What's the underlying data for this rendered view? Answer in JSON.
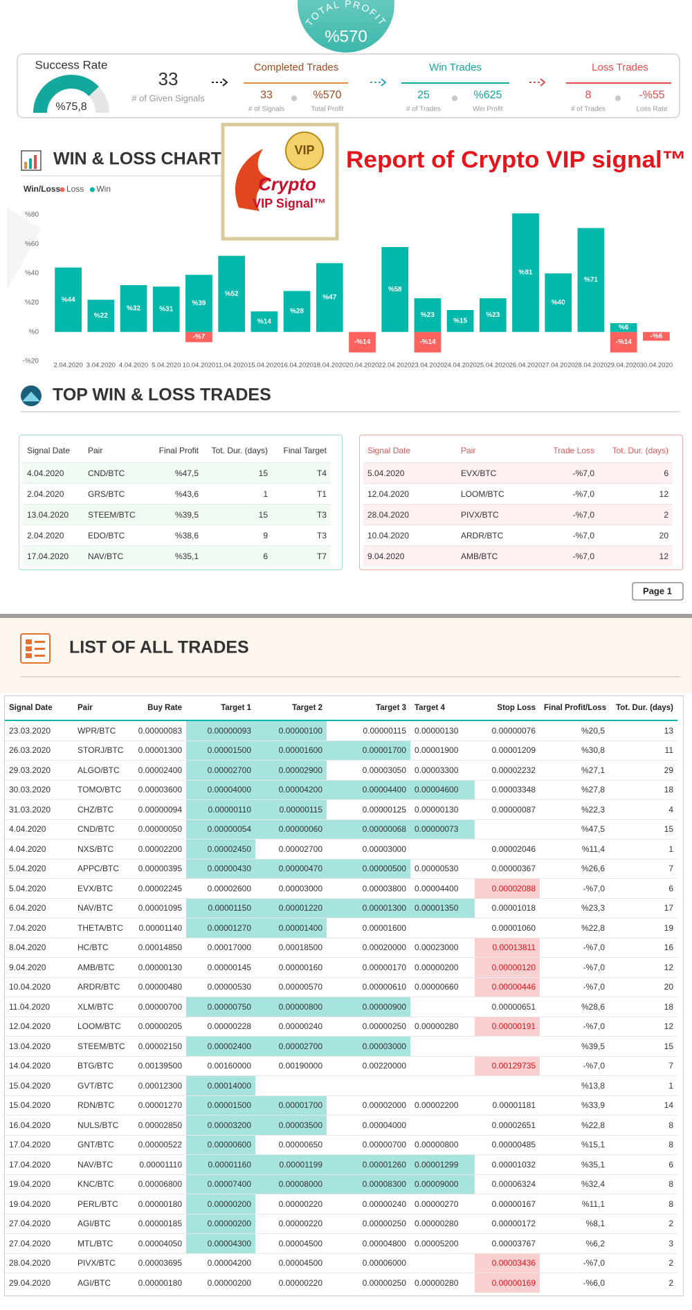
{
  "header": {
    "total_profit_label": "TOTAL PROFIT",
    "total_profit": "%570",
    "report_title": "Report of Crypto VIP signal™",
    "logo": {
      "badge": "VIP",
      "brand": "Crypto",
      "subtitle": "VIP Signal™"
    }
  },
  "kpis": {
    "success_rate": {
      "label": "Success Rate",
      "value": 75.8,
      "display": "%75,8"
    },
    "given_signals": {
      "value": 33,
      "label": "# of Given Signals"
    },
    "completed": {
      "title": "Completed Trades",
      "count": 33,
      "count_label": "# of Signals",
      "profit": "%570",
      "profit_label": "Total Profit"
    },
    "win": {
      "title": "Win Trades",
      "count": 25,
      "count_label": "# of Trades",
      "profit": "%625",
      "profit_label": "Win Profit"
    },
    "loss": {
      "title": "Loss Trades",
      "count": 8,
      "count_label": "# of Trades",
      "profit": "-%55",
      "profit_label": "Loss Rate"
    }
  },
  "chart_data": {
    "type": "bar",
    "title": "WIN & LOSS CHART",
    "legend_title": "Win/Loss",
    "legend": "top-left",
    "grid": false,
    "categories": [
      "2.04.2020",
      "3.04.2020",
      "4.04.2020",
      "5.04.2020",
      "10.04.2020",
      "11.04.2020",
      "15.04.2020",
      "16.04.2020",
      "18.04.2020",
      "20.04.2020",
      "22.04.2020",
      "23.04.2020",
      "24.04.2020",
      "25.04.2020",
      "26.04.2020",
      "27.04.2020",
      "28.04.2020",
      "29.04.2020",
      "30.04.2020"
    ],
    "series": [
      {
        "name": "Loss",
        "color": "#fd625e",
        "values": [
          null,
          null,
          null,
          null,
          -7,
          null,
          null,
          null,
          null,
          -14,
          null,
          -14,
          null,
          null,
          null,
          null,
          null,
          -14,
          -6
        ],
        "value_labels": [
          null,
          null,
          null,
          null,
          "-%7",
          null,
          null,
          null,
          null,
          "-%14",
          null,
          "-%14",
          null,
          null,
          null,
          null,
          null,
          "-%14",
          "-%6"
        ]
      },
      {
        "name": "Win",
        "color": "#01b8aa",
        "values": [
          44,
          22,
          32,
          31,
          39,
          52,
          14,
          28,
          47,
          null,
          58,
          23,
          15,
          23,
          81,
          40,
          71,
          6,
          null
        ],
        "value_labels": [
          "%44",
          "%22",
          "%32",
          "%31",
          "%39",
          "%52",
          "%14",
          "%28",
          "%47",
          null,
          "%58",
          "%23",
          "%15",
          "%23",
          "%81",
          "%40",
          "%71",
          "%6",
          null
        ]
      }
    ],
    "ylim": [
      -20,
      84
    ],
    "yticks": [
      {
        "value": -20,
        "label": "-%20"
      },
      {
        "value": 0,
        "label": "%0"
      },
      {
        "value": 20,
        "label": "%20"
      },
      {
        "value": 40,
        "label": "%40"
      },
      {
        "value": 60,
        "label": "%60"
      },
      {
        "value": 80,
        "label": "%80"
      }
    ]
  },
  "top_trades": {
    "title": "TOP WIN & LOSS TRADES",
    "win": {
      "columns": [
        "Signal Date",
        "Pair",
        "Final Profit",
        "Tot. Dur. (days)",
        "Final Target"
      ],
      "rows": [
        [
          "4.04.2020",
          "CND/BTC",
          "%47,5",
          15,
          "T4"
        ],
        [
          "2.04.2020",
          "GRS/BTC",
          "%43,6",
          1,
          "T1"
        ],
        [
          "13.04.2020",
          "STEEM/BTC",
          "%39,5",
          15,
          "T3"
        ],
        [
          "2.04.2020",
          "EDO/BTC",
          "%38,6",
          9,
          "T3"
        ],
        [
          "17.04.2020",
          "NAV/BTC",
          "%35,1",
          6,
          "T7"
        ]
      ]
    },
    "loss": {
      "columns": [
        "Signal Date",
        "Pair",
        "Trade Loss",
        "Tot. Dur. (days)"
      ],
      "rows": [
        [
          "5.04.2020",
          "EVX/BTC",
          "-%7,0",
          6
        ],
        [
          "12.04.2020",
          "LOOM/BTC",
          "-%7,0",
          12
        ],
        [
          "28.04.2020",
          "PIVX/BTC",
          "-%7,0",
          2
        ],
        [
          "10.04.2020",
          "ARDR/BTC",
          "-%7,0",
          20
        ],
        [
          "9.04.2020",
          "AMB/BTC",
          "-%7,0",
          12
        ]
      ]
    }
  },
  "pager": "Page 1",
  "all_trades": {
    "title": "LIST OF ALL TRADES",
    "columns": [
      "Signal Date",
      "Pair",
      "Buy Rate",
      "Target 1",
      "Target 2",
      "Target 3",
      "Target 4",
      "Stop Loss",
      "Final Profit/Loss",
      "Tot. Dur. (days)"
    ],
    "rows": [
      [
        "23.03.2020",
        "WPR/BTC",
        "0.00000083",
        "0.00000093",
        "0.00000100",
        "0.00000115",
        "0.00000130",
        "0.00000076",
        "%20,5",
        13
      ],
      [
        "26.03.2020",
        "STORJ/BTC",
        "0.00001300",
        "0.00001500",
        "0.00001600",
        "0.00001700",
        "0.00001900",
        "0.00001209",
        "%30,8",
        11
      ],
      [
        "29.03.2020",
        "ALGO/BTC",
        "0.00002400",
        "0.00002700",
        "0.00002900",
        "0.00003050",
        "0.00003300",
        "0.00002232",
        "%27,1",
        29
      ],
      [
        "30.03.2020",
        "TOMO/BTC",
        "0.00003600",
        "0.00004000",
        "0.00004200",
        "0.00004400",
        "0.00004600",
        "0.00003348",
        "%27,8",
        18
      ],
      [
        "31.03.2020",
        "CHZ/BTC",
        "0.00000094",
        "0.00000110",
        "0.00000115",
        "0.00000125",
        "0.00000130",
        "0.00000087",
        "%22,3",
        4
      ],
      [
        "4.04.2020",
        "CND/BTC",
        "0.00000050",
        "0.00000054",
        "0.00000060",
        "0.00000068",
        "0.00000073",
        null,
        "%47,5",
        15
      ],
      [
        "4.04.2020",
        "NXS/BTC",
        "0.00002200",
        "0.00002450",
        "0.00002700",
        "0.00003000",
        null,
        "0.00002046",
        "%11,4",
        1
      ],
      [
        "5.04.2020",
        "APPC/BTC",
        "0.00000395",
        "0.00000430",
        "0.00000470",
        "0.00000500",
        "0.00000530",
        "0.00000367",
        "%26,6",
        7
      ],
      [
        "5.04.2020",
        "EVX/BTC",
        "0.00002245",
        "0.00002600",
        "0.00003000",
        "0.00003800",
        "0.00004400",
        "0.00002088",
        "-%7,0",
        6
      ],
      [
        "6.04.2020",
        "NAV/BTC",
        "0.00001095",
        "0.00001150",
        "0.00001220",
        "0.00001300",
        "0.00001350",
        "0.00001018",
        "%23,3",
        17
      ],
      [
        "7.04.2020",
        "THETA/BTC",
        "0.00001140",
        "0.00001270",
        "0.00001400",
        "0.00001600",
        null,
        "0.00001060",
        "%22,8",
        19
      ],
      [
        "8.04.2020",
        "HC/BTC",
        "0.00014850",
        "0.00017000",
        "0.00018500",
        "0.00020000",
        "0.00023000",
        "0.00013811",
        "-%7,0",
        16
      ],
      [
        "9.04.2020",
        "AMB/BTC",
        "0.00000130",
        "0.00000145",
        "0.00000160",
        "0.00000170",
        "0.00000200",
        "0.00000120",
        "-%7,0",
        12
      ],
      [
        "10.04.2020",
        "ARDR/BTC",
        "0.00000480",
        "0.00000530",
        "0.00000570",
        "0.00000610",
        "0.00000660",
        "0.00000446",
        "-%7,0",
        20
      ],
      [
        "11.04.2020",
        "XLM/BTC",
        "0.00000700",
        "0.00000750",
        "0.00000800",
        "0.00000900",
        null,
        "0.00000651",
        "%28,6",
        18
      ],
      [
        "12.04.2020",
        "LOOM/BTC",
        "0.00000205",
        "0.00000228",
        "0.00000240",
        "0.00000250",
        "0.00000280",
        "0.00000191",
        "-%7,0",
        12
      ],
      [
        "13.04.2020",
        "STEEM/BTC",
        "0.00002150",
        "0.00002400",
        "0.00002700",
        "0.00003000",
        null,
        null,
        "%39,5",
        15
      ],
      [
        "14.04.2020",
        "BTG/BTC",
        "0.00139500",
        "0.00160000",
        "0.00190000",
        "0.00220000",
        null,
        "0.00129735",
        "-%7,0",
        7
      ],
      [
        "15.04.2020",
        "GVT/BTC",
        "0.00012300",
        "0.00014000",
        null,
        null,
        null,
        null,
        "%13,8",
        1
      ],
      [
        "15.04.2020",
        "RDN/BTC",
        "0.00001270",
        "0.00001500",
        "0.00001700",
        "0.00002000",
        "0.00002200",
        "0.00001181",
        "%33,9",
        14
      ],
      [
        "16.04.2020",
        "NULS/BTC",
        "0.00002850",
        "0.00003200",
        "0.00003500",
        "0.00004000",
        null,
        "0.00002651",
        "%22,8",
        8
      ],
      [
        "17.04.2020",
        "GNT/BTC",
        "0.00000522",
        "0.00000600",
        "0.00000650",
        "0.00000700",
        "0.00000800",
        "0.00000485",
        "%15,1",
        8
      ],
      [
        "17.04.2020",
        "NAV/BTC",
        "0.00001110",
        "0.00001160",
        "0.00001199",
        "0.00001260",
        "0.00001299",
        "0.00001032",
        "%35,1",
        6
      ],
      [
        "19.04.2020",
        "KNC/BTC",
        "0.00006800",
        "0.00007400",
        "0.00008000",
        "0.00008300",
        "0.00009000",
        "0.00006324",
        "%32,4",
        8
      ],
      [
        "19.04.2020",
        "PERL/BTC",
        "0.00000180",
        "0.00000200",
        "0.00000220",
        "0.00000240",
        "0.00000270",
        "0.00000167",
        "%11,1",
        8
      ],
      [
        "27.04.2020",
        "AGI/BTC",
        "0.00000185",
        "0.00000200",
        "0.00000220",
        "0.00000250",
        "0.00000280",
        "0.00000172",
        "%8,1",
        2
      ],
      [
        "27.04.2020",
        "MTL/BTC",
        "0.00004050",
        "0.00004300",
        "0.00004500",
        "0.00004800",
        "0.00005200",
        "0.00003767",
        "%6,2",
        3
      ],
      [
        "28.04.2020",
        "PIVX/BTC",
        "0.00003695",
        "0.00004200",
        "0.00004500",
        "0.00006000",
        null,
        "0.00003436",
        "-%7,0",
        2
      ],
      [
        "29.04.2020",
        "AGI/BTC",
        "0.00000180",
        "0.00000200",
        "0.00000220",
        "0.00000250",
        "0.00000280",
        "0.00000169",
        "-%6,0",
        2
      ]
    ],
    "targets_reached": [
      2,
      3,
      2,
      4,
      2,
      4,
      1,
      3,
      0,
      4,
      2,
      0,
      0,
      0,
      3,
      0,
      3,
      0,
      1,
      2,
      2,
      1,
      4,
      4,
      1,
      1,
      1,
      0,
      0
    ],
    "stop_hit": [
      false,
      false,
      false,
      false,
      false,
      false,
      false,
      false,
      true,
      false,
      false,
      true,
      true,
      true,
      false,
      true,
      false,
      true,
      false,
      false,
      false,
      false,
      false,
      false,
      false,
      false,
      false,
      true,
      true
    ]
  }
}
